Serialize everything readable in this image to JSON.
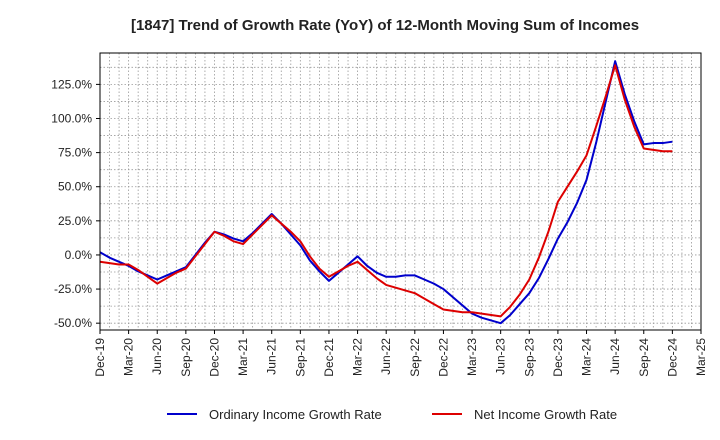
{
  "chart_data": {
    "type": "line",
    "title": "[1847]  Trend of Growth Rate (YoY) of 12-Month Moving Sum of Incomes",
    "xlabel": "",
    "ylabel": "",
    "x_tick_labels": [
      "Dec-19",
      "Mar-20",
      "Jun-20",
      "Sep-20",
      "Dec-20",
      "Mar-21",
      "Jun-21",
      "Sep-21",
      "Dec-21",
      "Mar-22",
      "Jun-22",
      "Sep-22",
      "Dec-22",
      "Mar-23",
      "Jun-23",
      "Sep-23",
      "Dec-23",
      "Mar-24",
      "Jun-24",
      "Sep-24",
      "Dec-24",
      "Mar-25"
    ],
    "y_tick_values": [
      -50,
      -25,
      0,
      25,
      50,
      75,
      100,
      125
    ],
    "y_tick_labels": [
      "-50.0%",
      "-25.0%",
      "0.0%",
      "25.0%",
      "50.0%",
      "75.0%",
      "100.0%",
      "125.0%"
    ],
    "ylim": [
      -55,
      148
    ],
    "grid": true,
    "legend_position": "bottom",
    "series": [
      {
        "name": "Ordinary Income Growth Rate",
        "color": "#0000cc",
        "x": [
          "Dec-19",
          "Jan-20",
          "Feb-20",
          "Mar-20",
          "Apr-20",
          "May-20",
          "Jun-20",
          "Jul-20",
          "Aug-20",
          "Sep-20",
          "Oct-20",
          "Nov-20",
          "Dec-20",
          "Jan-21",
          "Feb-21",
          "Mar-21",
          "Apr-21",
          "May-21",
          "Jun-21",
          "Jul-21",
          "Aug-21",
          "Sep-21",
          "Oct-21",
          "Nov-21",
          "Dec-21",
          "Jan-22",
          "Feb-22",
          "Mar-22",
          "Apr-22",
          "May-22",
          "Jun-22",
          "Jul-22",
          "Aug-22",
          "Sep-22",
          "Oct-22",
          "Nov-22",
          "Dec-22",
          "Jan-23",
          "Feb-23",
          "Mar-23",
          "Apr-23",
          "May-23",
          "Jun-23",
          "Jul-23",
          "Aug-23",
          "Sep-23",
          "Oct-23",
          "Nov-23",
          "Dec-23",
          "Jan-24",
          "Feb-24",
          "Mar-24",
          "Apr-24",
          "May-24",
          "Jun-24",
          "Jul-24",
          "Aug-24",
          "Sep-24",
          "Oct-24",
          "Nov-24",
          "Dec-24"
        ],
        "values": [
          2,
          -2,
          -5,
          -8,
          -12,
          -15,
          -18,
          -15,
          -12,
          -9,
          0,
          9,
          17,
          15,
          12,
          10,
          16,
          23,
          30,
          23,
          15,
          7,
          -4,
          -12,
          -19,
          -13,
          -7,
          -1,
          -8,
          -13,
          -16,
          -16,
          -15,
          -15,
          -18,
          -21,
          -25,
          -31,
          -37,
          -43,
          -46,
          -48,
          -50,
          -44,
          -36,
          -28,
          -17,
          -3,
          12,
          24,
          38,
          55,
          82,
          112,
          142,
          118,
          98,
          81,
          82,
          82,
          83
        ]
      },
      {
        "name": "Net Income Growth Rate",
        "color": "#dd0000",
        "x": [
          "Dec-19",
          "Jan-20",
          "Feb-20",
          "Mar-20",
          "Apr-20",
          "May-20",
          "Jun-20",
          "Jul-20",
          "Aug-20",
          "Sep-20",
          "Oct-20",
          "Nov-20",
          "Dec-20",
          "Jan-21",
          "Feb-21",
          "Mar-21",
          "Apr-21",
          "May-21",
          "Jun-21",
          "Jul-21",
          "Aug-21",
          "Sep-21",
          "Oct-21",
          "Nov-21",
          "Dec-21",
          "Jan-22",
          "Feb-22",
          "Mar-22",
          "Apr-22",
          "May-22",
          "Jun-22",
          "Jul-22",
          "Aug-22",
          "Sep-22",
          "Oct-22",
          "Nov-22",
          "Dec-22",
          "Jan-23",
          "Feb-23",
          "Mar-23",
          "Apr-23",
          "May-23",
          "Jun-23",
          "Jul-23",
          "Aug-23",
          "Sep-23",
          "Oct-23",
          "Nov-23",
          "Dec-23",
          "Jan-24",
          "Feb-24",
          "Mar-24",
          "Apr-24",
          "May-24",
          "Jun-24",
          "Jul-24",
          "Aug-24",
          "Sep-24",
          "Oct-24",
          "Nov-24",
          "Dec-24"
        ],
        "values": [
          -5,
          -6,
          -7,
          -7,
          -11,
          -16,
          -21,
          -17,
          -13,
          -10,
          -1,
          8,
          17,
          14,
          10,
          8,
          15,
          22,
          29,
          23,
          17,
          10,
          -1,
          -10,
          -16,
          -12,
          -8,
          -5,
          -11,
          -17,
          -22,
          -24,
          -26,
          -28,
          -32,
          -36,
          -40,
          -41,
          -42,
          -42,
          -43,
          -44,
          -45,
          -38,
          -29,
          -18,
          -2,
          17,
          39,
          50,
          61,
          73,
          94,
          116,
          139,
          114,
          94,
          78,
          77,
          76,
          76
        ]
      }
    ]
  }
}
